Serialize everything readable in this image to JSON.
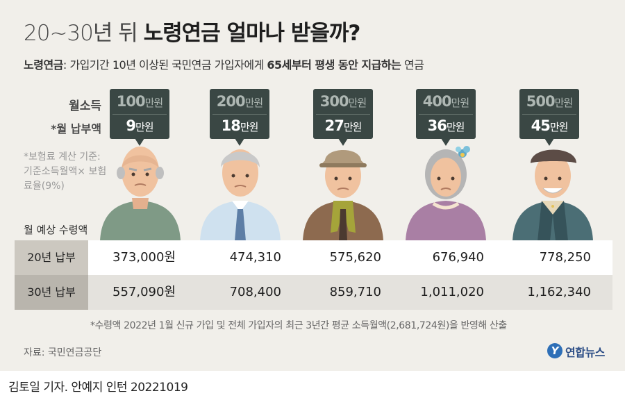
{
  "header": {
    "title_light": "20~30년 뒤",
    "title_bold": "노령연금 얼마나 받을까?",
    "subtitle_term": "노령연금",
    "subtitle_mid": ": 가입기간 10년 이상된 국민연금 가입자에게 ",
    "subtitle_bold": "65세부터 평생 동안 지급하는",
    "subtitle_end": " 연금"
  },
  "labels": {
    "monthly_income": "월소득",
    "monthly_premium": "*월 납부액",
    "premium_note": "*보험료 계산 기준: 기준소득월액× 보험료율(9%)",
    "expected_amount": "월 예상 수령액"
  },
  "unit_manwon": "만원",
  "tiers": [
    {
      "income": "100",
      "premium": "9"
    },
    {
      "income": "200",
      "premium": "18"
    },
    {
      "income": "300",
      "premium": "27"
    },
    {
      "income": "400",
      "premium": "36"
    },
    {
      "income": "500",
      "premium": "45"
    }
  ],
  "table": {
    "rows": [
      {
        "label": "20년 납부",
        "values": [
          "373,000원",
          "474,310",
          "575,620",
          "676,940",
          "778,250"
        ]
      },
      {
        "label": "30년 납부",
        "values": [
          "557,090원",
          "708,400",
          "859,710",
          "1,011,020",
          "1,162,340"
        ]
      }
    ]
  },
  "footnote": "*수령액 2022년 1월 신규 가입 및 전체 가입자의 최근 3년간 평균 소득월액(2,681,724원)을 반영해 산출",
  "source": "자료: 국민연금공단",
  "logo": {
    "mark": "Y",
    "text": "연합뉴스"
  },
  "byline": "김토일 기자. 안예지 인턴  20221019",
  "colors": {
    "background": "#f1efea",
    "bubble": "#3a4744",
    "row_head_1": "#ccc8c0",
    "row_head_2": "#b9b5ad"
  }
}
